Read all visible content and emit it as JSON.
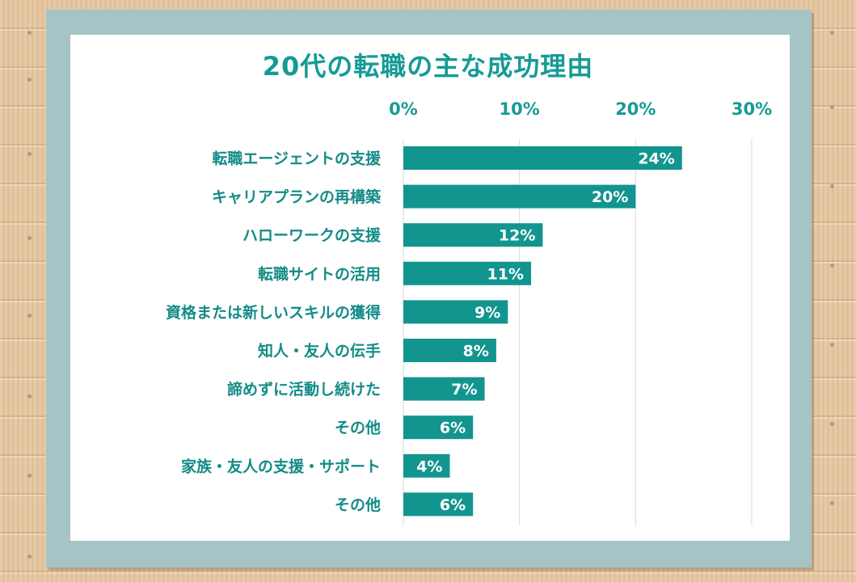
{
  "colors": {
    "bar": "#12958f",
    "title": "#159b95",
    "frame": "#a6c4c6",
    "grid": "#d8d8d8"
  },
  "chart_data": {
    "type": "bar",
    "orientation": "horizontal",
    "title": "20代の転職の主な成功理由",
    "xlabel": "",
    "ylabel": "",
    "xlim": [
      0,
      30
    ],
    "ticks": [
      "0%",
      "10%",
      "20%",
      "30%"
    ],
    "tick_values": [
      0,
      10,
      20,
      30
    ],
    "tick_position": "top",
    "grid": true,
    "categories": [
      "転職エージェントの支援",
      "キャリアプランの再構築",
      "ハローワークの支援",
      "転職サイトの活用",
      "資格または新しいスキルの獲得",
      "知人・友人の伝手",
      "諦めずに活動し続けた",
      "その他",
      "家族・友人の支援・サポート",
      "その他"
    ],
    "values": [
      24,
      20,
      12,
      11,
      9,
      8,
      7,
      6,
      4,
      6
    ],
    "value_labels": [
      "24%",
      "20%",
      "12%",
      "11%",
      "9%",
      "8%",
      "7%",
      "6%",
      "4%",
      "6%"
    ]
  }
}
